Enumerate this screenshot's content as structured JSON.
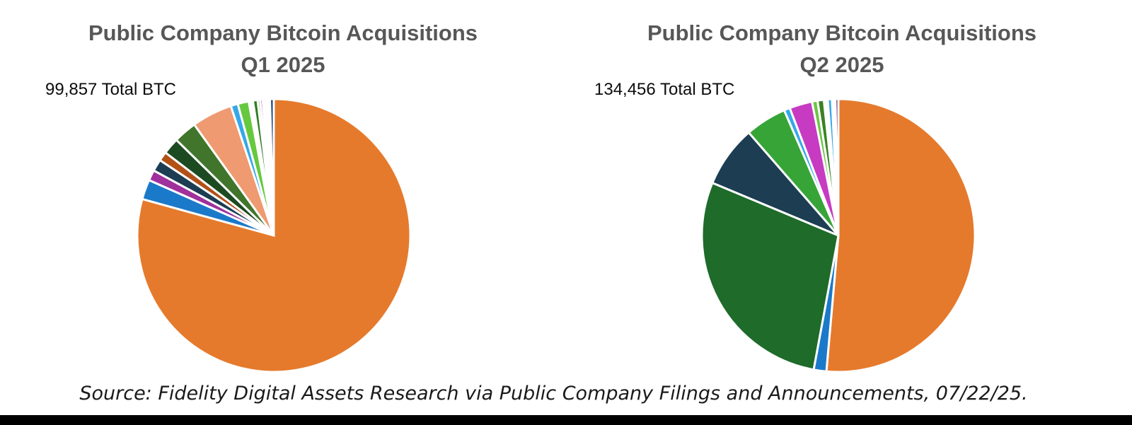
{
  "page": {
    "background_color": "#ffffff",
    "footer_bar_color": "#000000",
    "title_color": "#575757",
    "source_note": "Source: Fidelity Digital Assets Research via Public Company Filings and Announcements, 07/22/25."
  },
  "chart_data": [
    {
      "type": "pie",
      "title": "Public Company Bitcoin Acquisitions",
      "subtitle": "Q1 2025",
      "annotation": "99,857 Total BTC",
      "total_btc": 99857,
      "legend": "none",
      "start_angle_deg": 0,
      "direction": "clockwise",
      "slice_border_color": "#ffffff",
      "values_estimated_from_pixels": true,
      "slices": [
        {
          "label": "slice-01-largest",
          "color": "#E57A2C",
          "pct_est": 79.3,
          "btc_est": 79190
        },
        {
          "label": "slice-02",
          "color": "#1B79C9",
          "pct_est": 2.35,
          "btc_est": 2350
        },
        {
          "label": "slice-03",
          "color": "#A0309C",
          "pct_est": 1.25,
          "btc_est": 1250
        },
        {
          "label": "slice-04",
          "color": "#1C3D52",
          "pct_est": 1.4,
          "btc_est": 1400
        },
        {
          "label": "slice-05",
          "color": "#B25116",
          "pct_est": 1.1,
          "btc_est": 1100
        },
        {
          "label": "slice-06",
          "color": "#1C4A21",
          "pct_est": 1.95,
          "btc_est": 1950
        },
        {
          "label": "slice-07",
          "color": "#40752B",
          "pct_est": 2.75,
          "btc_est": 2750
        },
        {
          "label": "slice-08",
          "color": "#EF9A70",
          "pct_est": 4.8,
          "btc_est": 4790
        },
        {
          "label": "slice-09",
          "color": "#35A8E8",
          "pct_est": 0.85,
          "btc_est": 850
        },
        {
          "label": "slice-10",
          "color": "#66C83E",
          "pct_est": 1.3,
          "btc_est": 1300
        },
        {
          "label": "gap",
          "color": "#FFFFFF",
          "pct_est": 0.5,
          "gap": true
        },
        {
          "label": "slice-11",
          "color": "#2E7D22",
          "pct_est": 0.55,
          "btc_est": 550
        },
        {
          "label": "slice-12",
          "color": "#66C83E",
          "pct_est": 0.3,
          "btc_est": 300
        },
        {
          "label": "slice-13",
          "color": "#D53AC8",
          "pct_est": 0.3,
          "btc_est": 300
        },
        {
          "label": "gap",
          "color": "#FFFFFF",
          "pct_est": 0.85,
          "gap": true
        },
        {
          "label": "slice-14",
          "color": "#1A4480",
          "pct_est": 0.45,
          "btc_est": 450
        }
      ]
    },
    {
      "type": "pie",
      "title": "Public Company Bitcoin Acquisitions",
      "subtitle": "Q2 2025",
      "annotation": "134,456 Total BTC",
      "total_btc": 134456,
      "legend": "none",
      "start_angle_deg": 0,
      "direction": "clockwise",
      "slice_border_color": "#ffffff",
      "values_estimated_from_pixels": true,
      "slices": [
        {
          "label": "slice-01-largest",
          "color": "#E57A2C",
          "pct_est": 51.4,
          "btc_est": 69110
        },
        {
          "label": "slice-02",
          "color": "#1B79C9",
          "pct_est": 1.5,
          "btc_est": 2020
        },
        {
          "label": "slice-03",
          "color": "#1E6B2A",
          "pct_est": 28.4,
          "btc_est": 38190
        },
        {
          "label": "slice-04",
          "color": "#1C3D52",
          "pct_est": 7.3,
          "btc_est": 9820
        },
        {
          "label": "slice-05",
          "color": "#37A437",
          "pct_est": 4.9,
          "btc_est": 6590
        },
        {
          "label": "slice-06",
          "color": "#35A8E8",
          "pct_est": 0.7,
          "btc_est": 940
        },
        {
          "label": "slice-07",
          "color": "#C73BC3",
          "pct_est": 2.7,
          "btc_est": 3630
        },
        {
          "label": "slice-08",
          "color": "#6CC644",
          "pct_est": 0.65,
          "btc_est": 870
        },
        {
          "label": "slice-09",
          "color": "#3A8224",
          "pct_est": 0.75,
          "btc_est": 1010
        },
        {
          "label": "gap",
          "color": "#FFFFFF",
          "pct_est": 0.45,
          "gap": true
        },
        {
          "label": "slice-10",
          "color": "#35A8E8",
          "pct_est": 0.5,
          "btc_est": 670
        },
        {
          "label": "gap",
          "color": "#FFFFFF",
          "pct_est": 0.4,
          "gap": true
        },
        {
          "label": "slice-11",
          "color": "#5B2A67",
          "pct_est": 0.35,
          "btc_est": 470
        }
      ]
    }
  ]
}
